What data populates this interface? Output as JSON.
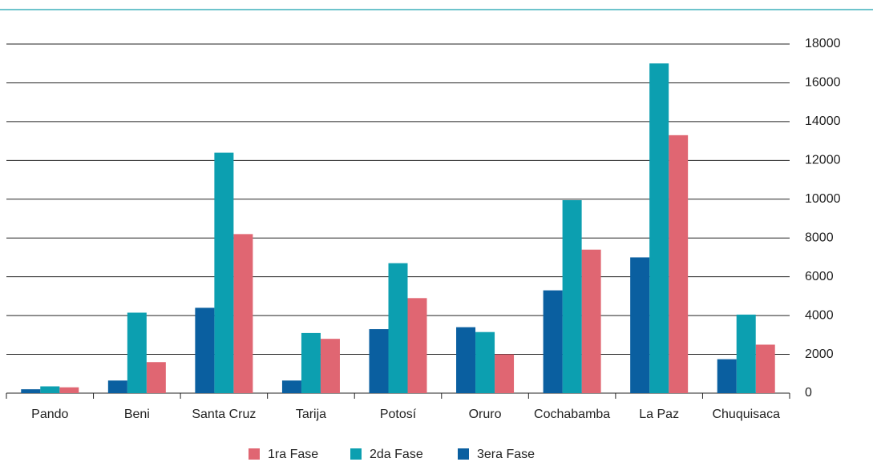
{
  "chart_data": {
    "type": "bar",
    "categories": [
      "Pando",
      "Beni",
      "Santa Cruz",
      "Tarija",
      "Potosí",
      "Oruro",
      "Cochabamba",
      "La Paz",
      "Chuquisaca"
    ],
    "series": [
      {
        "name": "1ra Fase",
        "color": "#e06672",
        "values": [
          300,
          1600,
          8200,
          2800,
          4900,
          2000,
          7400,
          13300,
          2500
        ]
      },
      {
        "name": "2da Fase",
        "color": "#0c9fb0",
        "values": [
          350,
          4150,
          12400,
          3100,
          6700,
          3150,
          9950,
          17000,
          4050
        ]
      },
      {
        "name": "3era Fase",
        "color": "#0a5fa0",
        "values": [
          200,
          650,
          4400,
          650,
          3300,
          3400,
          5300,
          7000,
          1750
        ]
      }
    ],
    "ylim": [
      0,
      18000
    ],
    "yticks": [
      0,
      2000,
      4000,
      6000,
      8000,
      10000,
      12000,
      14000,
      16000,
      18000
    ],
    "grid": true,
    "legend": "bottom"
  }
}
